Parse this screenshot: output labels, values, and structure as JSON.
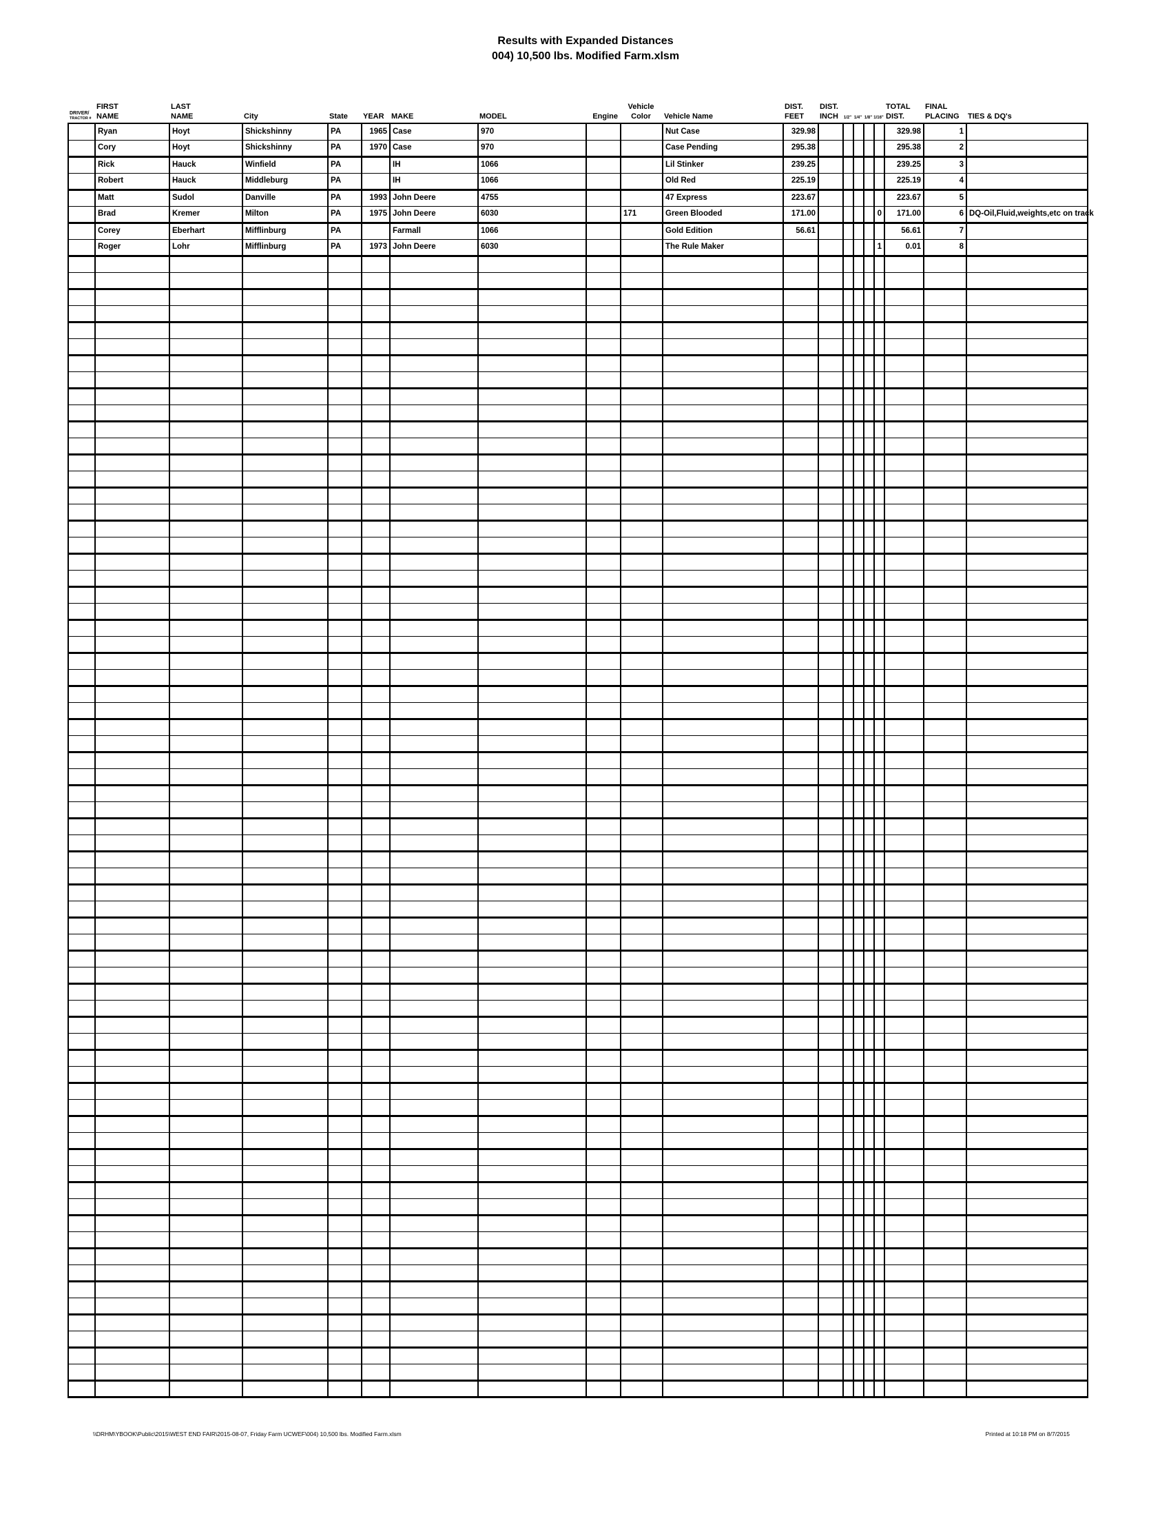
{
  "title": {
    "line1": "Results with Expanded Distances",
    "line2": "004) 10,500 lbs. Modified Farm.xlsm"
  },
  "colors": {
    "page_background": "#ffffff",
    "text": "#000000",
    "grid_line": "#000000"
  },
  "table": {
    "columns": [
      {
        "id": "tractor_number",
        "line1": "DRIVER/",
        "line2": "TRACTOR #"
      },
      {
        "id": "first_name",
        "line1": "FIRST",
        "line2": "NAME"
      },
      {
        "id": "last_name",
        "line1": "LAST",
        "line2": "NAME"
      },
      {
        "id": "city",
        "line1": "",
        "line2": "City"
      },
      {
        "id": "state",
        "line1": "",
        "line2": "State"
      },
      {
        "id": "year",
        "line1": "",
        "line2": "YEAR"
      },
      {
        "id": "make",
        "line1": "",
        "line2": "MAKE"
      },
      {
        "id": "model",
        "line1": "",
        "line2": "MODEL"
      },
      {
        "id": "engine",
        "line1": "",
        "line2": "Engine"
      },
      {
        "id": "vehicle_color",
        "line1": "Vehicle",
        "line2": "Color"
      },
      {
        "id": "vehicle_name",
        "line1": "",
        "line2": "Vehicle Name"
      },
      {
        "id": "dist_feet",
        "line1": "DIST.",
        "line2": "FEET"
      },
      {
        "id": "dist_inch",
        "line1": "DIST.",
        "line2": "INCH"
      },
      {
        "id": "half_inch",
        "line1": "",
        "line2": "1/2\""
      },
      {
        "id": "quarter_inch",
        "line1": "",
        "line2": "1/4\""
      },
      {
        "id": "eighth_inch",
        "line1": "",
        "line2": "1/8\""
      },
      {
        "id": "sixteenth_inch",
        "line1": "",
        "line2": "1/16\""
      },
      {
        "id": "total_dist",
        "line1": "TOTAL",
        "line2": "DIST."
      },
      {
        "id": "final_placing",
        "line1": "FINAL",
        "line2": "PLACING"
      },
      {
        "id": "ties_dqs",
        "line1": "",
        "line2": "TIES & DQ's"
      }
    ],
    "rows": [
      [
        "",
        "Ryan",
        "Hoyt",
        "Shickshinny",
        "PA",
        "1965",
        "Case",
        "970",
        "",
        "",
        "Nut Case",
        "329.98",
        "",
        "",
        "",
        "",
        "",
        "329.98",
        "1",
        ""
      ],
      [
        "",
        "Cory",
        "Hoyt",
        "Shickshinny",
        "PA",
        "1970",
        "Case",
        "970",
        "",
        "",
        "Case Pending",
        "295.38",
        "",
        "",
        "",
        "",
        "",
        "295.38",
        "2",
        ""
      ],
      [
        "",
        "Rick",
        "Hauck",
        "Winfield",
        "PA",
        "",
        "IH",
        "1066",
        "",
        "",
        "Lil Stinker",
        "239.25",
        "",
        "",
        "",
        "",
        "",
        "239.25",
        "3",
        ""
      ],
      [
        "",
        "Robert",
        "Hauck",
        "Middleburg",
        "PA",
        "",
        "IH",
        "1066",
        "",
        "",
        "Old Red",
        "225.19",
        "",
        "",
        "",
        "",
        "",
        "225.19",
        "4",
        ""
      ],
      [
        "",
        "Matt",
        "Sudol",
        "Danville",
        "PA",
        "1993",
        "John Deere",
        "4755",
        "",
        "",
        "47 Express",
        "223.67",
        "",
        "",
        "",
        "",
        "",
        "223.67",
        "5",
        ""
      ],
      [
        "",
        "Brad",
        "Kremer",
        "Milton",
        "PA",
        "1975",
        "John Deere",
        "6030",
        "",
        "171",
        "Green Blooded",
        "171.00",
        "",
        "",
        "",
        "",
        "0",
        "171.00",
        "6",
        "DQ-Oil,Fluid,weights,etc on track"
      ],
      [
        "",
        "Corey",
        "Eberhart",
        "Mifflinburg",
        "PA",
        "",
        "Farmall",
        "1066",
        "",
        "",
        "Gold Edition",
        "56.61",
        "",
        "",
        "",
        "",
        "",
        "56.61",
        "7",
        ""
      ],
      [
        "",
        "Roger",
        "Lohr",
        "Mifflinburg",
        "PA",
        "1973",
        "John Deere",
        "6030",
        "",
        "",
        "The Rule Maker",
        "",
        "",
        "",
        "",
        "",
        "1",
        "0.01",
        "8",
        ""
      ]
    ],
    "empty_row_count": 69
  },
  "footer": {
    "left": "\\\\DRHM\\YBOOK\\Public\\2015\\WEST END FAIR\\2015-08-07, Friday Farm UCWEF\\004) 10,500 lbs. Modified Farm.xlsm",
    "right": "Printed at 10:18 PM on 8/7/2015"
  }
}
